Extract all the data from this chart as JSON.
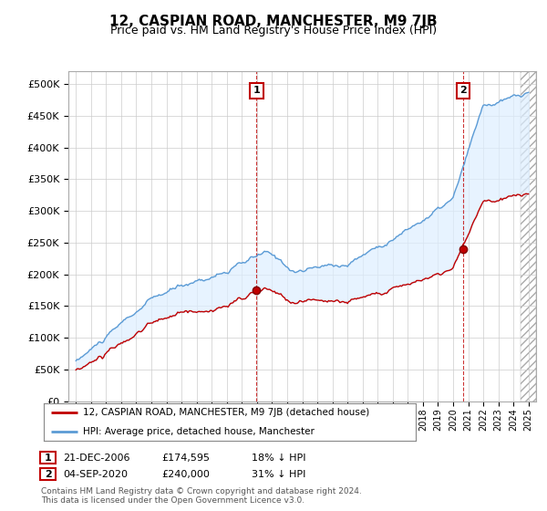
{
  "title": "12, CASPIAN ROAD, MANCHESTER, M9 7JB",
  "subtitle": "Price paid vs. HM Land Registry's House Price Index (HPI)",
  "legend_line1": "12, CASPIAN ROAD, MANCHESTER, M9 7JB (detached house)",
  "legend_line2": "HPI: Average price, detached house, Manchester",
  "footnote": "Contains HM Land Registry data © Crown copyright and database right 2024.\nThis data is licensed under the Open Government Licence v3.0.",
  "sale1_date": "21-DEC-2006",
  "sale1_price": "£174,595",
  "sale1_hpi": "18% ↓ HPI",
  "sale2_date": "04-SEP-2020",
  "sale2_price": "£240,000",
  "sale2_hpi": "31% ↓ HPI",
  "hpi_color": "#5b9bd5",
  "price_color": "#c00000",
  "fill_color": "#ddeeff",
  "marker1_x": 2006.97,
  "marker1_y": 174595,
  "marker2_x": 2020.67,
  "marker2_y": 240000,
  "ylim": [
    0,
    520000
  ],
  "xlim": [
    1994.5,
    2025.5
  ],
  "background_color": "#ffffff",
  "plot_bg_color": "#ffffff",
  "grid_color": "#cccccc",
  "title_fontsize": 11,
  "subtitle_fontsize": 9
}
